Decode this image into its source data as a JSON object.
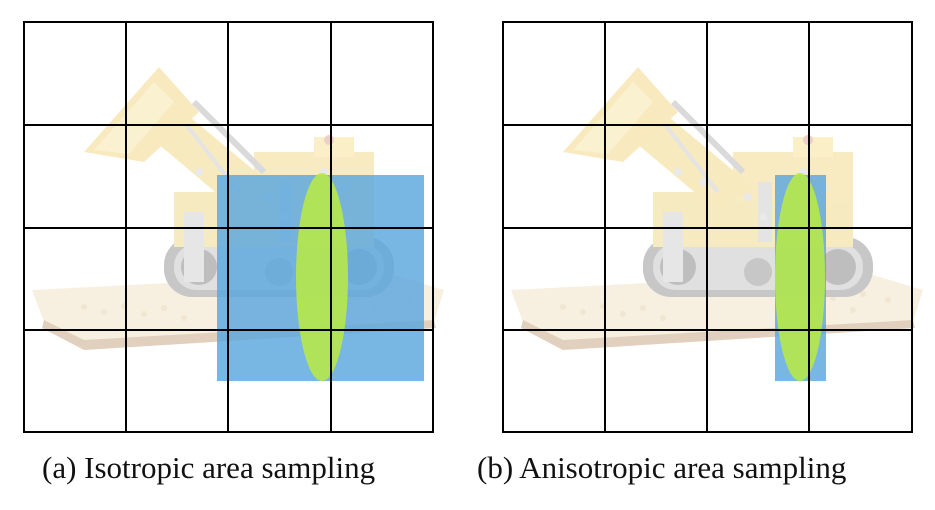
{
  "colors": {
    "background": "#ffffff",
    "grid_line": "#000000",
    "area_fill": "#5aa6dd",
    "ellipse_fill": "#b7e84a",
    "image_faded": true
  },
  "panels": [
    {
      "id": "a",
      "caption": "(a) Isotropic area sampling",
      "grid": {
        "rows": 4,
        "cols": 4
      },
      "sampling_area_shape": "square",
      "footprint_shape": "ellipse"
    },
    {
      "id": "b",
      "caption": "(b) Anisotropic area sampling",
      "grid": {
        "rows": 4,
        "cols": 4
      },
      "sampling_area_shape": "narrow rectangle",
      "footprint_shape": "ellipse"
    }
  ],
  "icons": [
    "excavator-image"
  ]
}
